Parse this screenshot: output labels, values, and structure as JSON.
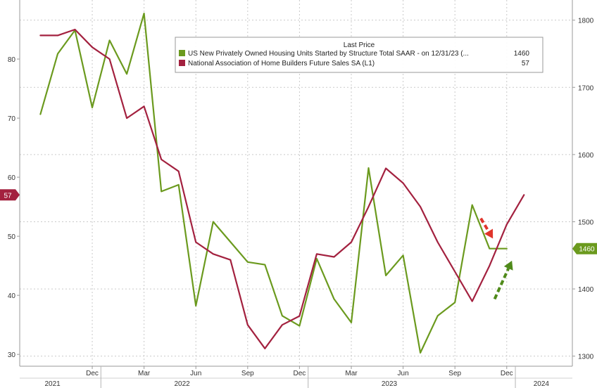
{
  "chart_data": {
    "type": "line",
    "legend": {
      "header": "Last Price",
      "placement": "top-right",
      "entries": [
        {
          "label": "US New Privately Owned Housing Units Started by Structure Total SAAR -  on 12/31/23  (...",
          "value": "1460",
          "color": "#6b9a1e"
        },
        {
          "label": "National Association of Home Builders Future Sales SA  (L1)",
          "value": "57",
          "color": "#a3213f"
        }
      ]
    },
    "left_axis": {
      "ylim": [
        28,
        90
      ],
      "ticks": [
        30,
        40,
        50,
        60,
        70,
        80
      ]
    },
    "right_axis": {
      "ylim": [
        1285,
        1830
      ],
      "ticks": [
        1300,
        1400,
        1500,
        1600,
        1700,
        1800
      ]
    },
    "x_axis": {
      "month_ticks": [
        "Dec",
        "Mar",
        "Jun",
        "Sep",
        "Dec",
        "Mar",
        "Jun",
        "Sep",
        "Dec"
      ],
      "month_tick_index": [
        3,
        6,
        9,
        12,
        15,
        18,
        21,
        24,
        27
      ],
      "year_labels": [
        "2021",
        "2022",
        "2023",
        "2024"
      ],
      "year_label_index": [
        0.7,
        8.2,
        20.2,
        29.0
      ],
      "year_separator_index": [
        3.5,
        15.5,
        27.5
      ],
      "range_index": [
        -1.2,
        30.8
      ]
    },
    "grid": true,
    "series": [
      {
        "name": "US New Privately Owned Housing Units Started by Structure Total SAAR",
        "axis": "right",
        "color": "#6b9a1e",
        "x_index": [
          0,
          1,
          2,
          3,
          4,
          5,
          6,
          7,
          8,
          9,
          10,
          11,
          12,
          13,
          14,
          15,
          16,
          17,
          18,
          19,
          20,
          21,
          22,
          23,
          24,
          25,
          26,
          27
        ],
        "values": [
          1660,
          1750,
          1785,
          1670,
          1770,
          1720,
          1810,
          1545,
          1555,
          1375,
          1500,
          1470,
          1440,
          1436,
          1360,
          1345,
          1445,
          1385,
          1350,
          1580,
          1420,
          1450,
          1305,
          1360,
          1380,
          1525,
          1460,
          1460
        ]
      },
      {
        "name": "National Association of Home Builders Future Sales SA",
        "axis": "left",
        "color": "#a3213f",
        "x_index": [
          0,
          1,
          2,
          3,
          4,
          5,
          6,
          7,
          8,
          9,
          10,
          11,
          12,
          13,
          14,
          15,
          16,
          17,
          18,
          19,
          20,
          21,
          22,
          23,
          24,
          25,
          26,
          27,
          28
        ],
        "values": [
          84,
          84,
          85,
          82,
          80,
          70,
          72,
          63,
          61,
          49,
          47,
          46,
          35,
          31,
          35,
          36.5,
          47,
          46.5,
          49,
          55,
          61.5,
          59,
          55,
          49,
          44,
          39,
          45,
          52,
          57
        ]
      }
    ],
    "badges": [
      {
        "axis": "left",
        "value": 57,
        "text": "57",
        "color": "#a3213f"
      },
      {
        "axis": "right",
        "value": 1460,
        "text": "1460",
        "color": "#6b9a1e"
      }
    ],
    "annotations": [
      {
        "type": "dashed-arrow",
        "direction": "down",
        "color": "#e0352b",
        "x_index": [
          25.5,
          26.2
        ],
        "right_values": [
          1505,
          1475
        ]
      },
      {
        "type": "dashed-arrow",
        "direction": "up",
        "color": "#4f8a1a",
        "x_index": [
          26.3,
          27.3
        ],
        "right_values": [
          1385,
          1442
        ]
      }
    ]
  }
}
